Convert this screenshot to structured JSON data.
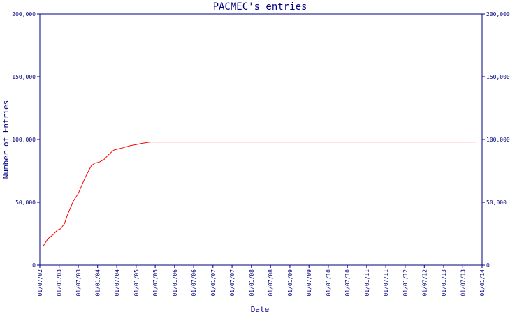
{
  "chart_data": {
    "type": "line",
    "title": "PACMEC's entries",
    "xlabel": "Date",
    "ylabel": "Number of Entries",
    "ylim": [
      0,
      200000
    ],
    "y_ticks": [
      0,
      50000,
      100000,
      150000,
      200000
    ],
    "y_tick_labels": [
      "0",
      "50,000",
      "100,000",
      "150,000",
      "200,000"
    ],
    "y_axis_on_both_sides": true,
    "grid": false,
    "x_ticks": [
      "01/07/02",
      "01/01/03",
      "01/07/03",
      "01/01/04",
      "01/07/04",
      "01/01/05",
      "01/07/05",
      "01/01/06",
      "01/07/06",
      "01/01/07",
      "01/07/07",
      "01/01/08",
      "01/07/08",
      "01/01/09",
      "01/07/09",
      "01/01/10",
      "01/07/10",
      "01/01/11",
      "01/07/11",
      "01/01/12",
      "01/07/12",
      "01/01/13",
      "01/07/13",
      "01/01/14"
    ],
    "xlim": [
      "2002-07-01",
      "2014-01-01"
    ],
    "series": [
      {
        "color": "#ff0000",
        "points": [
          [
            "2002-08-01",
            15000
          ],
          [
            "2002-09-15",
            21000
          ],
          [
            "2002-11-01",
            24000
          ],
          [
            "2002-12-15",
            28000
          ],
          [
            "2003-01-15",
            29000
          ],
          [
            "2003-02-20",
            33000
          ],
          [
            "2003-03-20",
            40000
          ],
          [
            "2003-04-15",
            45000
          ],
          [
            "2003-05-15",
            51000
          ],
          [
            "2003-07-01",
            57000
          ],
          [
            "2003-08-01",
            63000
          ],
          [
            "2003-09-01",
            69000
          ],
          [
            "2003-10-01",
            74000
          ],
          [
            "2003-11-01",
            79000
          ],
          [
            "2003-12-01",
            81000
          ],
          [
            "2004-01-15",
            82000
          ],
          [
            "2004-03-01",
            84000
          ],
          [
            "2004-04-15",
            88000
          ],
          [
            "2004-06-01",
            91500
          ],
          [
            "2004-07-15",
            92500
          ],
          [
            "2004-09-01",
            93500
          ],
          [
            "2004-11-01",
            95000
          ],
          [
            "2005-01-01",
            96000
          ],
          [
            "2005-03-01",
            97000
          ],
          [
            "2005-05-15",
            98000
          ],
          [
            "2013-11-01",
            98000
          ]
        ]
      }
    ]
  }
}
